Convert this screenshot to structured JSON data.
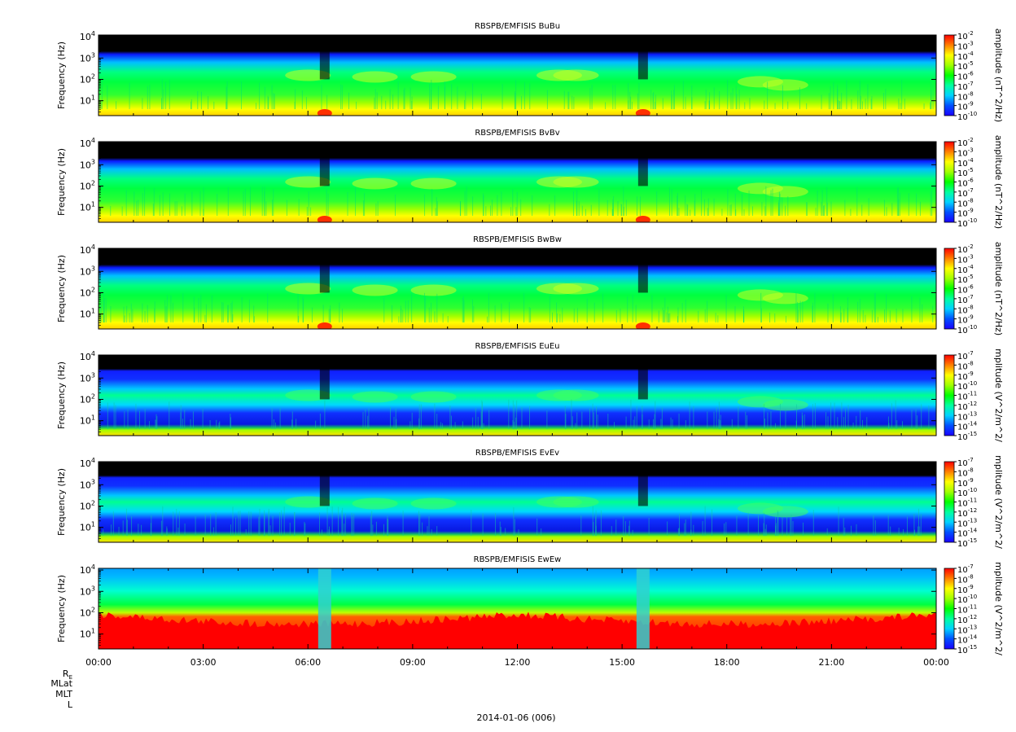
{
  "figure": {
    "date_label": "2014-01-06 (006)",
    "ephemeris_labels": [
      "R_E",
      "MLat",
      "MLT",
      "L"
    ]
  },
  "x_ticks": [
    "00:00",
    "03:00",
    "06:00",
    "09:00",
    "12:00",
    "15:00",
    "18:00",
    "21:00",
    "00:00"
  ],
  "colors": {
    "background": "#ffffff",
    "no_data": "#000000",
    "colormap": [
      "#1a00ff",
      "#0050ff",
      "#00d2ff",
      "#00ffa0",
      "#00ff00",
      "#a0ff00",
      "#ffff00",
      "#ff8000",
      "#ff0000"
    ]
  },
  "chart_data": [
    {
      "type": "heatmap",
      "title": "RBSPB/EMFISIS  BuBu",
      "ylabel": "Frequency (Hz)",
      "y_ticks": [
        "10^4",
        "10^3",
        "10^2",
        "10^1"
      ],
      "colorbar_label": "amplitude (nT^2/Hz)",
      "colorbar_ticks": [
        "10^-2",
        "10^-3",
        "10^-4",
        "10^-5",
        "10^-6",
        "10^-7",
        "10^-8",
        "10^-9",
        "10^-10"
      ],
      "x_range": [
        "00:00",
        "00:00"
      ],
      "y_range_hz": [
        2,
        12000
      ],
      "scale": "log",
      "pattern": "mag"
    },
    {
      "type": "heatmap",
      "title": "RBSPB/EMFISIS  BvBv",
      "ylabel": "Frequency (Hz)",
      "y_ticks": [
        "10^4",
        "10^3",
        "10^2",
        "10^1"
      ],
      "colorbar_label": "amplitude (nT^2/Hz)",
      "colorbar_ticks": [
        "10^-2",
        "10^-3",
        "10^-4",
        "10^-5",
        "10^-6",
        "10^-7",
        "10^-8",
        "10^-9",
        "10^-10"
      ],
      "x_range": [
        "00:00",
        "00:00"
      ],
      "y_range_hz": [
        2,
        12000
      ],
      "scale": "log",
      "pattern": "mag"
    },
    {
      "type": "heatmap",
      "title": "RBSPB/EMFISIS  BwBw",
      "ylabel": "Frequency (Hz)",
      "y_ticks": [
        "10^4",
        "10^3",
        "10^2",
        "10^1"
      ],
      "colorbar_label": "amplitude (nT^2/Hz)",
      "colorbar_ticks": [
        "10^-2",
        "10^-3",
        "10^-4",
        "10^-5",
        "10^-6",
        "10^-7",
        "10^-8",
        "10^-9",
        "10^-10"
      ],
      "x_range": [
        "00:00",
        "00:00"
      ],
      "y_range_hz": [
        2,
        12000
      ],
      "scale": "log",
      "pattern": "mag"
    },
    {
      "type": "heatmap",
      "title": "RBSPB/EMFISIS  EuEu",
      "ylabel": "Frequency (Hz)",
      "y_ticks": [
        "10^4",
        "10^3",
        "10^2",
        "10^1"
      ],
      "colorbar_label": "mplitude (V^2/m^2/",
      "colorbar_ticks": [
        "10^-7",
        "10^-8",
        "10^-9",
        "10^-10",
        "10^-11",
        "10^-12",
        "10^-13",
        "10^-14",
        "10^-15"
      ],
      "x_range": [
        "00:00",
        "00:00"
      ],
      "y_range_hz": [
        2,
        12000
      ],
      "scale": "log",
      "pattern": "elec"
    },
    {
      "type": "heatmap",
      "title": "RBSPB/EMFISIS  EvEv",
      "ylabel": "Frequency (Hz)",
      "y_ticks": [
        "10^4",
        "10^3",
        "10^2",
        "10^1"
      ],
      "colorbar_label": "mplitude (V^2/m^2/",
      "colorbar_ticks": [
        "10^-7",
        "10^-8",
        "10^-9",
        "10^-10",
        "10^-11",
        "10^-12",
        "10^-13",
        "10^-14",
        "10^-15"
      ],
      "x_range": [
        "00:00",
        "00:00"
      ],
      "y_range_hz": [
        2,
        12000
      ],
      "scale": "log",
      "pattern": "elec"
    },
    {
      "type": "heatmap",
      "title": "RBSPB/EMFISIS  EwEw",
      "ylabel": "Frequency (Hz)",
      "y_ticks": [
        "10^4",
        "10^3",
        "10^2",
        "10^1"
      ],
      "colorbar_label": "mplitude (V^2/m^2/",
      "colorbar_ticks": [
        "10^-7",
        "10^-8",
        "10^-9",
        "10^-10",
        "10^-11",
        "10^-12",
        "10^-13",
        "10^-14",
        "10^-15"
      ],
      "x_range": [
        "00:00",
        "00:00"
      ],
      "y_range_hz": [
        2,
        12000
      ],
      "scale": "log",
      "pattern": "ew"
    }
  ]
}
